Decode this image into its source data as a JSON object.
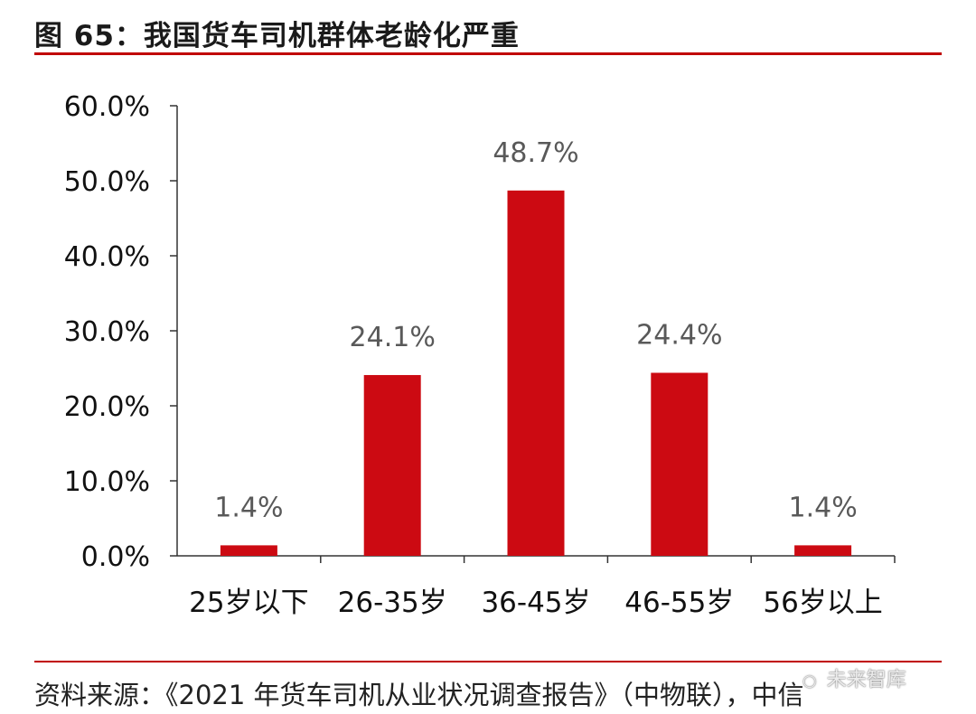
{
  "figure": {
    "title": "图 65：我国货车司机群体老龄化严重",
    "source": "资料来源：《2021 年货车司机从业状况调查报告》（中物联），中信",
    "watermark": {
      "icon": "chat-bubble-icon",
      "text": "未来智库"
    },
    "colors": {
      "bar": "#cc0a12",
      "rule": "#c00000",
      "axis": "#333333",
      "value_label": "#595959"
    }
  },
  "chart_data": {
    "type": "bar",
    "categories": [
      "25岁以下",
      "26-35岁",
      "36-45岁",
      "46-55岁",
      "56岁以上"
    ],
    "values": [
      1.4,
      24.1,
      48.7,
      24.4,
      1.4
    ],
    "value_labels": [
      "1.4%",
      "24.1%",
      "48.7%",
      "24.4%",
      "1.4%"
    ],
    "y_ticks": [
      "0.0%",
      "10.0%",
      "20.0%",
      "30.0%",
      "40.0%",
      "50.0%",
      "60.0%"
    ],
    "ylim": [
      0,
      60
    ],
    "y_unit": "%",
    "grid": false,
    "legend": "none",
    "title": "",
    "xlabel": "",
    "ylabel": ""
  }
}
